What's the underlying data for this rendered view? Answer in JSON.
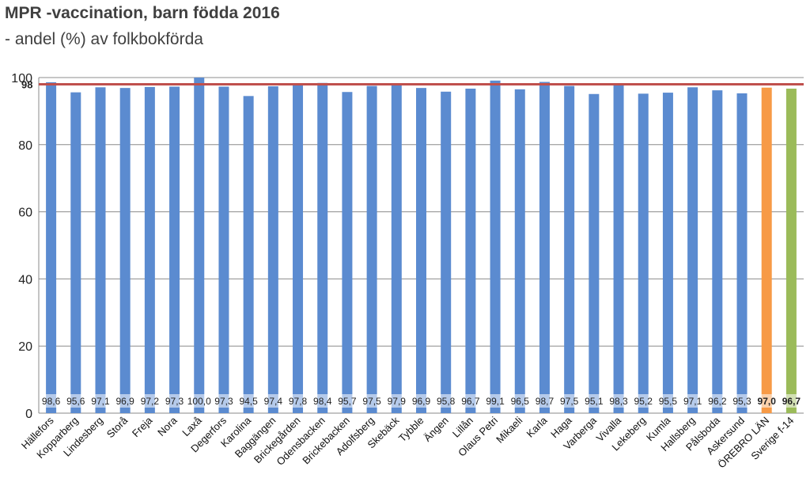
{
  "chart_data": {
    "type": "bar",
    "title": "MPR -vaccination, barn födda 2016",
    "subtitle": "- andel (%) av folkbokförda",
    "xlabel": "",
    "ylabel": "",
    "ylim": [
      0,
      100
    ],
    "yticks": [
      "0",
      "20",
      "40",
      "60",
      "80",
      "100"
    ],
    "grid": true,
    "legend": "none",
    "categories": [
      "Hällefors",
      "Kopparberg",
      "Lindesberg",
      "Storå",
      "Freja",
      "Nora",
      "Laxå",
      "Degerfors",
      "Karolina",
      "Baggängen",
      "Brickegården",
      "Odensbacken",
      "Brickebacken",
      "Adolfsberg",
      "Skebäck",
      "Tybble",
      "Ängen",
      "Lillån",
      "Olaus Petri",
      "Mikaeli",
      "Karla",
      "Haga",
      "Varberga",
      "Vivalla",
      "Lekeberg",
      "Kumla",
      "Hallsberg",
      "Pålsboda",
      "Askersund",
      "ÖREBRO LÄN",
      "Sverige f-14"
    ],
    "values": [
      98.6,
      95.6,
      97.1,
      96.9,
      97.2,
      97.3,
      100.0,
      97.3,
      94.5,
      97.4,
      97.8,
      98.4,
      95.7,
      97.5,
      97.9,
      96.9,
      95.8,
      96.7,
      99.1,
      96.5,
      98.7,
      97.5,
      95.1,
      98.3,
      95.2,
      95.5,
      97.1,
      96.2,
      95.3,
      97.0,
      96.7
    ],
    "value_labels": [
      "98,6",
      "95,6",
      "97,1",
      "96,9",
      "97,2",
      "97,3",
      "100,0",
      "97,3",
      "94,5",
      "97,4",
      "97,8",
      "98,4",
      "95,7",
      "97,5",
      "97,9",
      "96,9",
      "95,8",
      "96,7",
      "99,1",
      "96,5",
      "98,7",
      "97,5",
      "95,1",
      "98,3",
      "95,2",
      "95,5",
      "97,1",
      "96,2",
      "95,3",
      "97,0",
      "96,7"
    ],
    "bar_colors": [
      "#5b8bd0",
      "#5b8bd0",
      "#5b8bd0",
      "#5b8bd0",
      "#5b8bd0",
      "#5b8bd0",
      "#5b8bd0",
      "#5b8bd0",
      "#5b8bd0",
      "#5b8bd0",
      "#5b8bd0",
      "#5b8bd0",
      "#5b8bd0",
      "#5b8bd0",
      "#5b8bd0",
      "#5b8bd0",
      "#5b8bd0",
      "#5b8bd0",
      "#5b8bd0",
      "#5b8bd0",
      "#5b8bd0",
      "#5b8bd0",
      "#5b8bd0",
      "#5b8bd0",
      "#5b8bd0",
      "#5b8bd0",
      "#5b8bd0",
      "#5b8bd0",
      "#5b8bd0",
      "#f79a46",
      "#9bbb59"
    ],
    "bold_labels": [
      29,
      30
    ],
    "reference_line": {
      "value": 98,
      "label": "98",
      "color": "#c0504d"
    }
  }
}
